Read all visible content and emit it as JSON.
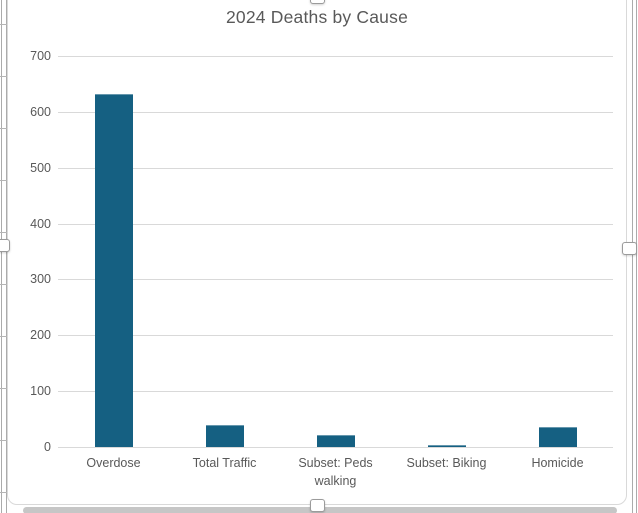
{
  "chart_data": {
    "type": "bar",
    "title": "2024 Deaths by Cause",
    "categories": [
      "Overdose",
      "Total Traffic",
      "Subset: Peds walking",
      "Subset: Biking",
      "Homicide"
    ],
    "values": [
      632,
      40,
      22,
      3,
      36
    ],
    "xlabel": "",
    "ylabel": "",
    "ylim": [
      0,
      700
    ],
    "ytick_interval": 100,
    "ytick_labels": [
      "0",
      "100",
      "200",
      "300",
      "400",
      "500",
      "600",
      "700"
    ],
    "grid": true,
    "legend": false,
    "bar_color": "#156082",
    "gridline_color": "#D9D9D9",
    "text_color": "#595959"
  },
  "chart_object": {
    "state": "selected"
  }
}
